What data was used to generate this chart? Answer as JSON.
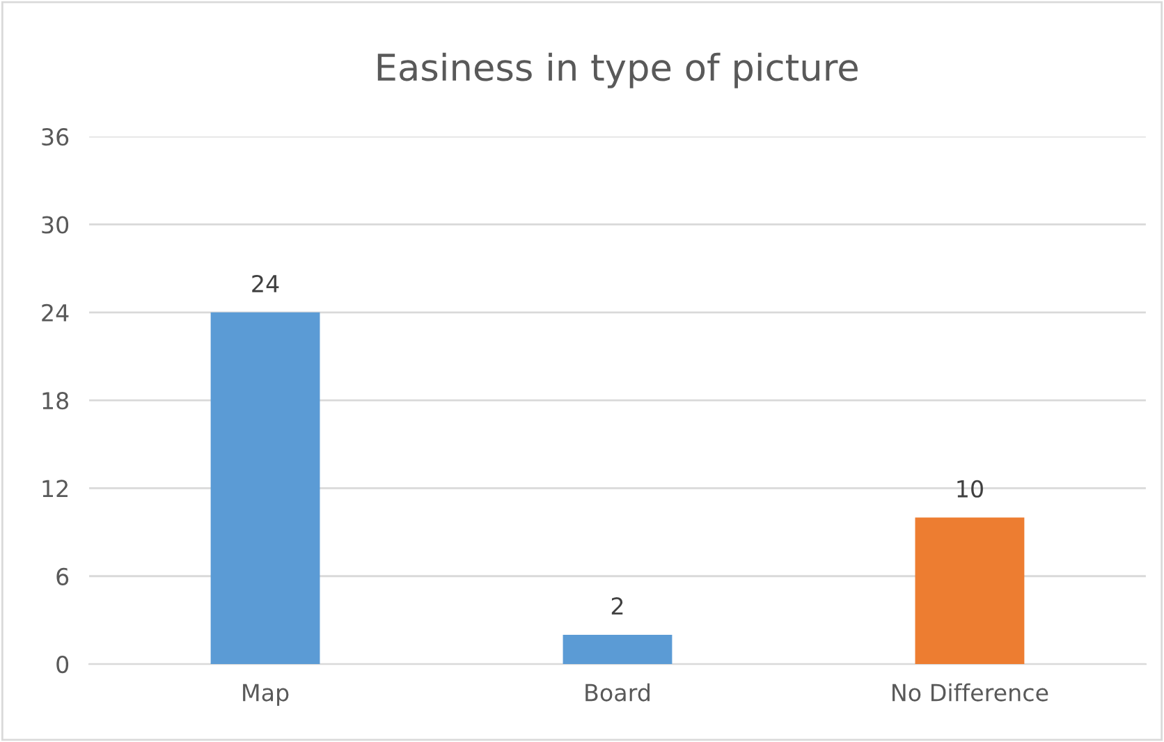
{
  "chart_data": {
    "type": "bar",
    "title": "Easiness in type of picture",
    "categories": [
      "Map",
      "Board",
      "No Difference"
    ],
    "values": [
      24,
      2,
      10
    ],
    "colors": [
      "#5b9bd5",
      "#5b9bd5",
      "#ed7d31"
    ],
    "ylim": [
      0,
      36
    ],
    "yticks": [
      0,
      6,
      12,
      18,
      24,
      30,
      36
    ],
    "grid": "y",
    "data_labels": true
  }
}
